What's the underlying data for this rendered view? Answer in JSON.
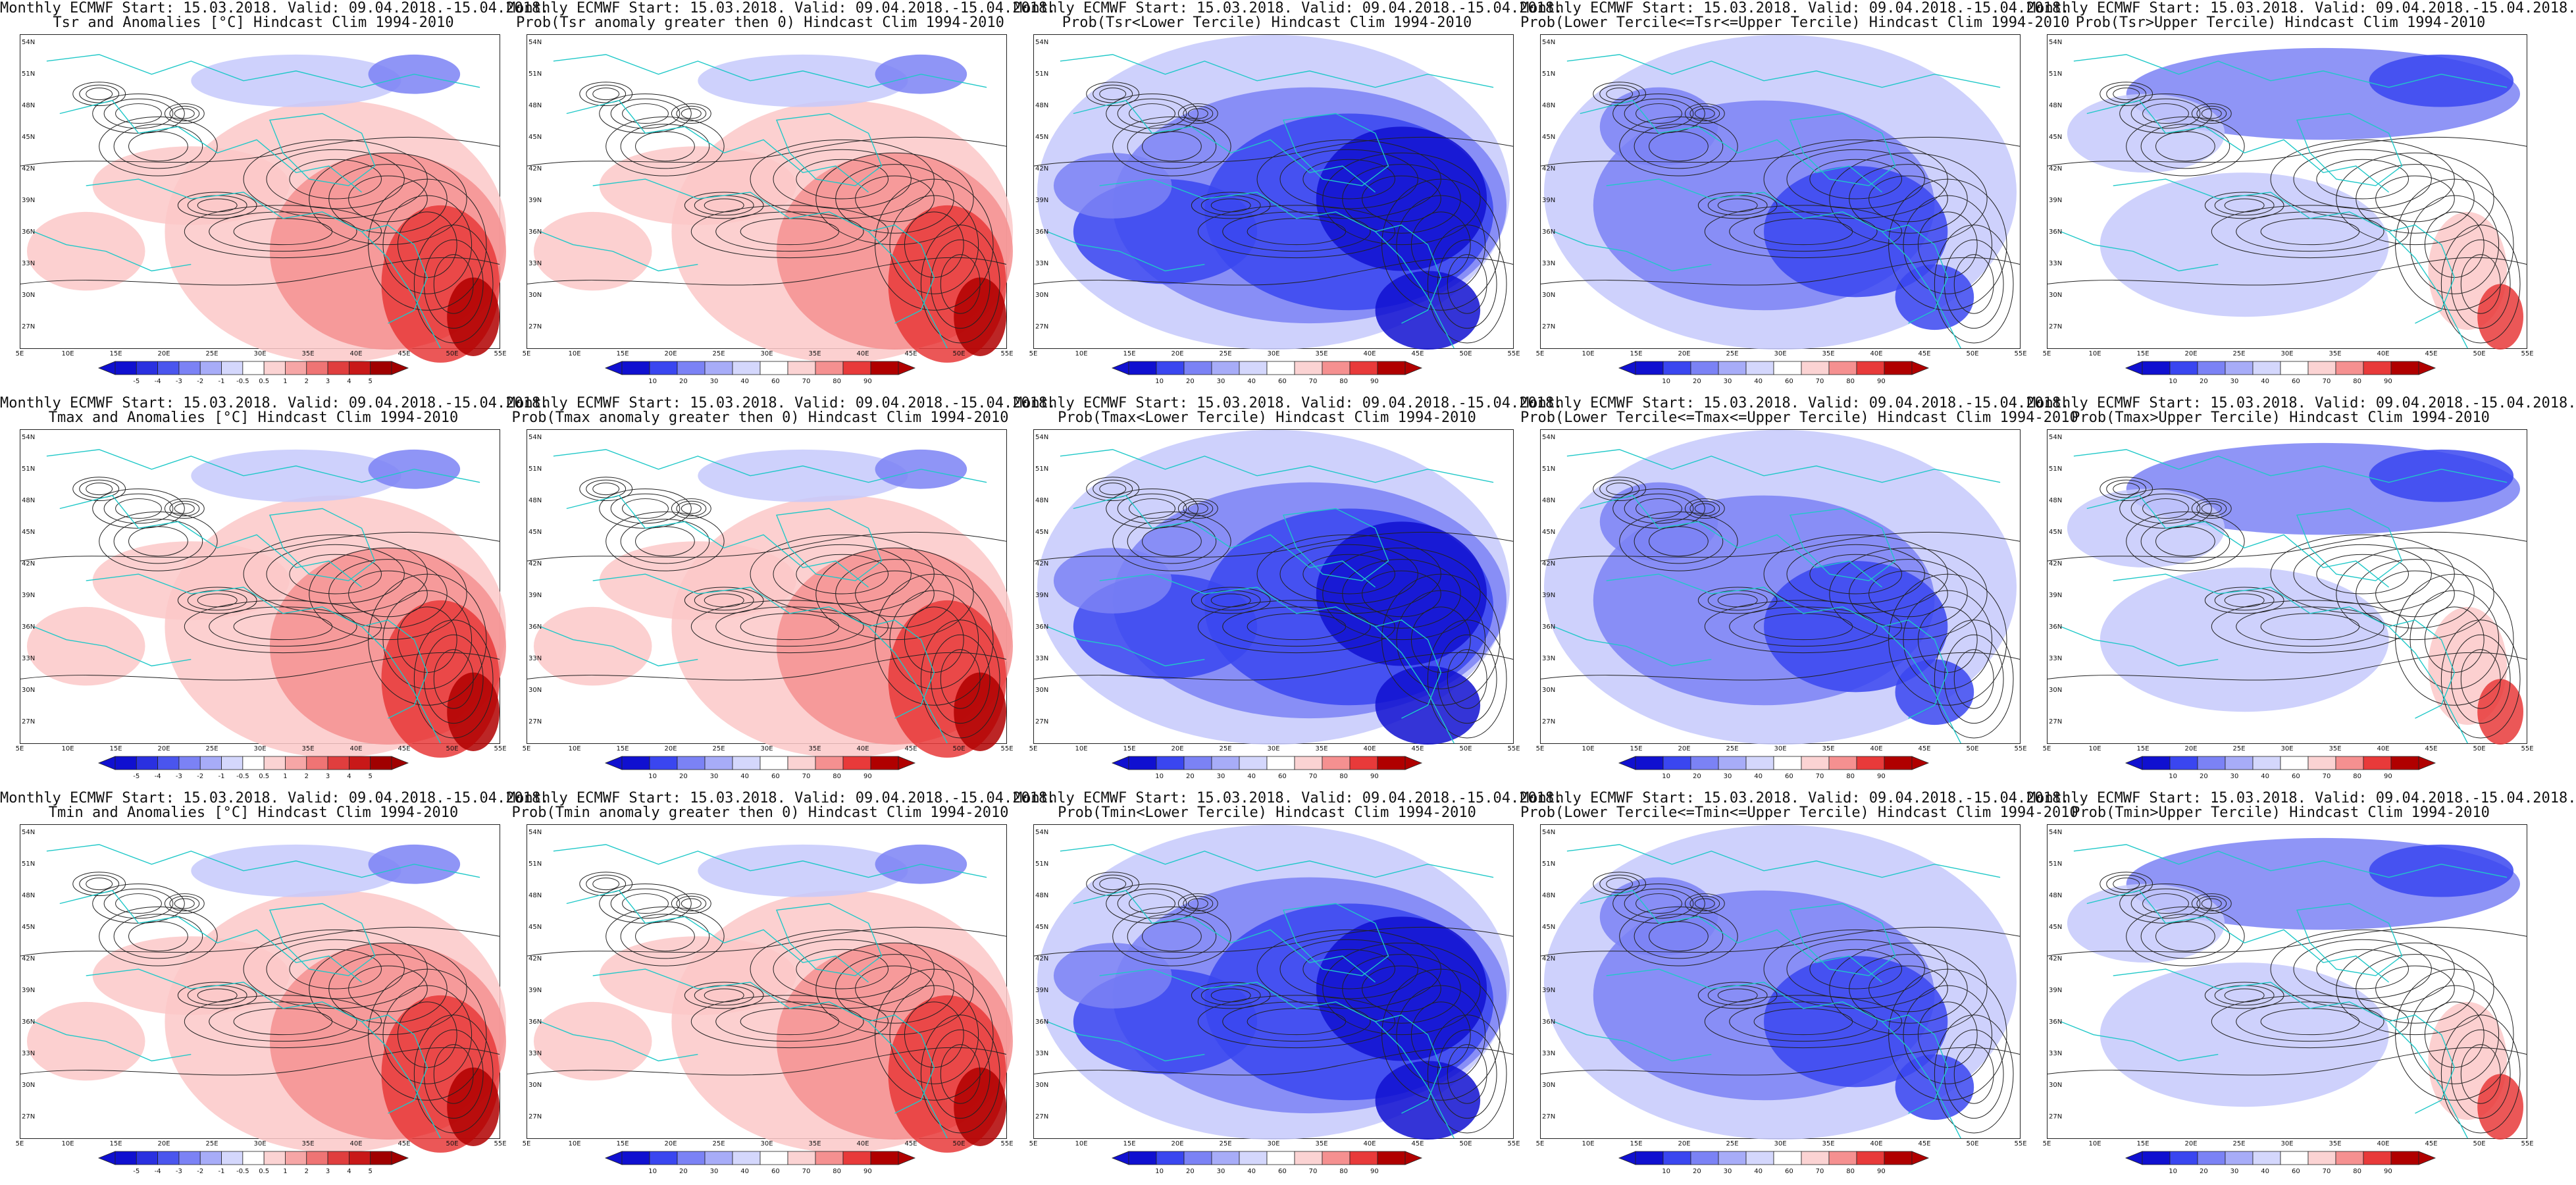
{
  "panels": [
    {
      "line1": "Monthly ECMWF Start: 15.03.2018. Valid: 09.04.2018.-15.04.2018.",
      "line2": "Tsr and Anomalies [°C] Hindcast Clim 1994-2010",
      "kind": "anom",
      "lead": "warm"
    },
    {
      "line1": "Monthly ECMWF Start: 15.03.2018. Valid: 09.04.2018.-15.04.2018.",
      "line2": "Prob(Tsr anomaly greater then 0) Hindcast Clim 1994-2010",
      "kind": "prob",
      "lead": "warm"
    },
    {
      "line1": "Monthly ECMWF Start: 15.03.2018. Valid: 09.04.2018.-15.04.2018.",
      "line2": "Prob(Tsr<Lower Tercile) Hindcast Clim 1994-2010",
      "kind": "prob",
      "lead": "coldstrong"
    },
    {
      "line1": "Monthly ECMWF Start: 15.03.2018. Valid: 09.04.2018.-15.04.2018.",
      "line2": "Prob(Lower Tercile<=Tsr<=Upper Tercile) Hindcast Clim 1994-2010",
      "kind": "prob",
      "lead": "coldmid"
    },
    {
      "line1": "Monthly ECMWF Start: 15.03.2018. Valid: 09.04.2018.-15.04.2018.",
      "line2": "Prob(Tsr>Upper Tercile) Hindcast Clim 1994-2010",
      "kind": "prob",
      "lead": "mixed"
    },
    {
      "line1": "Monthly ECMWF Start: 15.03.2018. Valid: 09.04.2018.-15.04.2018.",
      "line2": "Tmax and Anomalies [°C] Hindcast Clim 1994-2010",
      "kind": "anom",
      "lead": "warm"
    },
    {
      "line1": "Monthly ECMWF Start: 15.03.2018. Valid: 09.04.2018.-15.04.2018.",
      "line2": "Prob(Tmax anomaly greater then 0) Hindcast Clim 1994-2010",
      "kind": "prob",
      "lead": "warm"
    },
    {
      "line1": "Monthly ECMWF Start: 15.03.2018. Valid: 09.04.2018.-15.04.2018.",
      "line2": "Prob(Tmax<Lower Tercile) Hindcast Clim 1994-2010",
      "kind": "prob",
      "lead": "coldstrong"
    },
    {
      "line1": "Monthly ECMWF Start: 15.03.2018. Valid: 09.04.2018.-15.04.2018.",
      "line2": "Prob(Lower Tercile<=Tmax<=Upper Tercile) Hindcast Clim 1994-2010",
      "kind": "prob",
      "lead": "coldmid"
    },
    {
      "line1": "Monthly ECMWF Start: 15.03.2018. Valid: 09.04.2018.-15.04.2018.",
      "line2": "Prob(Tmax>Upper Tercile) Hindcast Clim 1994-2010",
      "kind": "prob",
      "lead": "mixed"
    },
    {
      "line1": "Monthly ECMWF Start: 15.03.2018. Valid: 09.04.2018.-15.04.2018.",
      "line2": "Tmin and Anomalies [°C] Hindcast Clim 1994-2010",
      "kind": "anom",
      "lead": "warm"
    },
    {
      "line1": "Monthly ECMWF Start: 15.03.2018. Valid: 09.04.2018.-15.04.2018.",
      "line2": "Prob(Tmin anomaly greater then 0) Hindcast Clim 1994-2010",
      "kind": "prob",
      "lead": "warm"
    },
    {
      "line1": "Monthly ECMWF Start: 15.03.2018. Valid: 09.04.2018.-15.04.2018.",
      "line2": "Prob(Tmin<Lower Tercile) Hindcast Clim 1994-2010",
      "kind": "prob",
      "lead": "coldstrong"
    },
    {
      "line1": "Monthly ECMWF Start: 15.03.2018. Valid: 09.04.2018.-15.04.2018.",
      "line2": "Prob(Lower Tercile<=Tmin<=Upper Tercile) Hindcast Clim 1994-2010",
      "kind": "prob",
      "lead": "coldmid"
    },
    {
      "line1": "Monthly ECMWF Start: 15.03.2018. Valid: 09.04.2018.-15.04.2018.",
      "line2": "Prob(Tmin>Upper Tercile) Hindcast Clim 1994-2010",
      "kind": "prob",
      "lead": "mixed"
    }
  ],
  "lat_labels": [
    "54N",
    "51N",
    "48N",
    "45N",
    "42N",
    "39N",
    "36N",
    "33N",
    "30N",
    "27N"
  ],
  "lon_labels": [
    "5E",
    "10E",
    "15E",
    "20E",
    "25E",
    "30E",
    "35E",
    "40E",
    "45E",
    "50E",
    "55E"
  ],
  "anom_levels": [
    "-5",
    "-4",
    "-3",
    "-2",
    "-1",
    "-0.5",
    "0.5",
    "1",
    "2",
    "3",
    "4",
    "5"
  ],
  "prob_levels": [
    "10",
    "20",
    "30",
    "40",
    "60",
    "70",
    "80",
    "90"
  ],
  "colors": {
    "deep_blue": "#1010d0",
    "blue": "#3a46f0",
    "mid_blue": "#7b82f5",
    "light_blue": "#c6c9fb",
    "pale_red": "#fbc8c8",
    "light_red": "#f59090",
    "red": "#e83a3a",
    "deep_red": "#b00000",
    "coast": "#20c8c8",
    "contour": "#222222"
  }
}
